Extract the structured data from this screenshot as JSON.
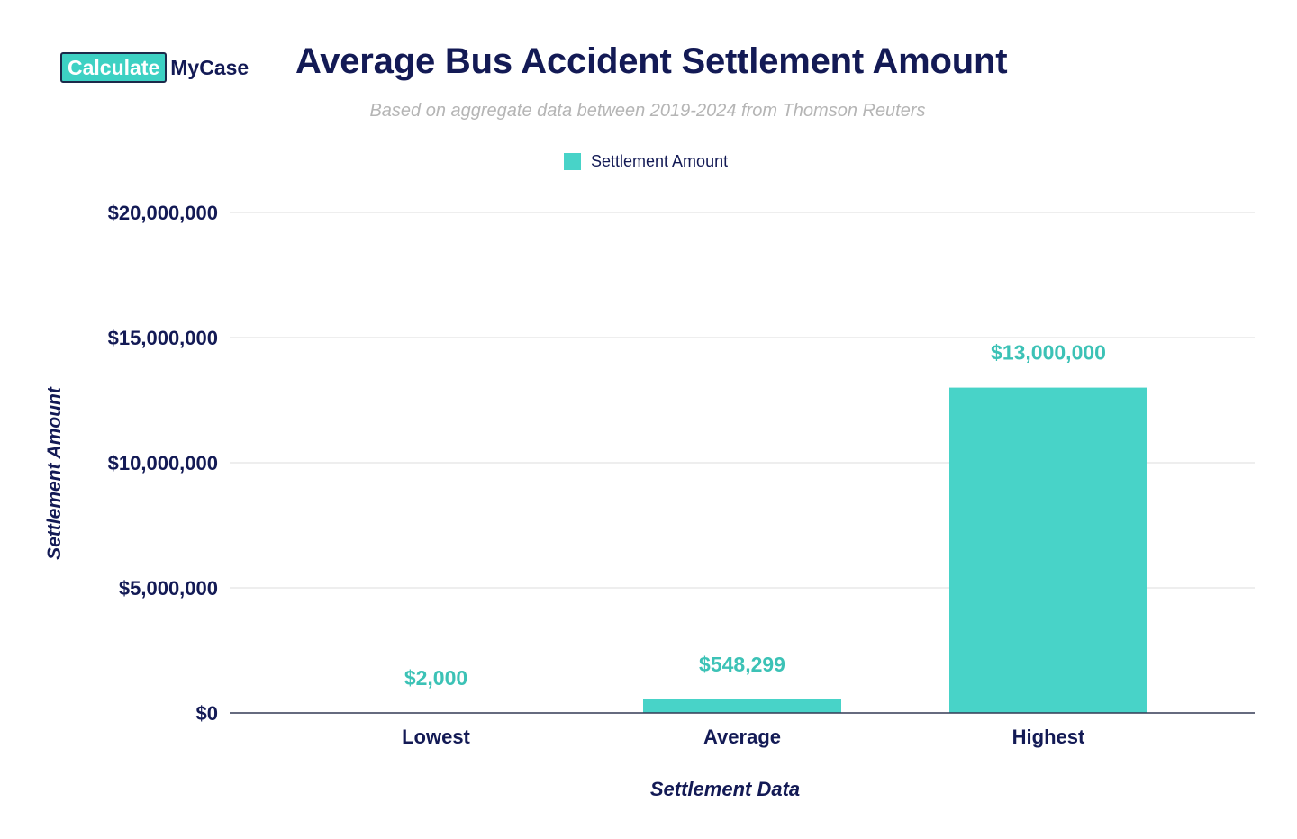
{
  "logo": {
    "part1": "Calculate",
    "part2": "MyCase"
  },
  "colors": {
    "bar": "#48d3c8",
    "data_label": "#3cc2b6",
    "axis_text": "#131a55",
    "grid": "#dcdcdc"
  },
  "chart_data": {
    "type": "bar",
    "title": "Average Bus Accident Settlement Amount",
    "subtitle": "Based on aggregate data between 2019-2024 from Thomson Reuters",
    "legend": [
      "Settlement Amount"
    ],
    "legend_position": "top-center",
    "categories": [
      "Lowest",
      "Average",
      "Highest"
    ],
    "series": [
      {
        "name": "Settlement Amount",
        "values": [
          2000,
          548299,
          13000000
        ],
        "labels": [
          "$2,000",
          "$548,299",
          "$13,000,000"
        ]
      }
    ],
    "xlabel": "Settlement Data",
    "ylabel": "Settlement Amount",
    "ylim": [
      0,
      20000000
    ],
    "yticks": [
      0,
      5000000,
      10000000,
      15000000,
      20000000
    ],
    "ytick_labels": [
      "$0",
      "$5,000,000",
      "$10,000,000",
      "$15,000,000",
      "$20,000,000"
    ],
    "grid": true
  }
}
